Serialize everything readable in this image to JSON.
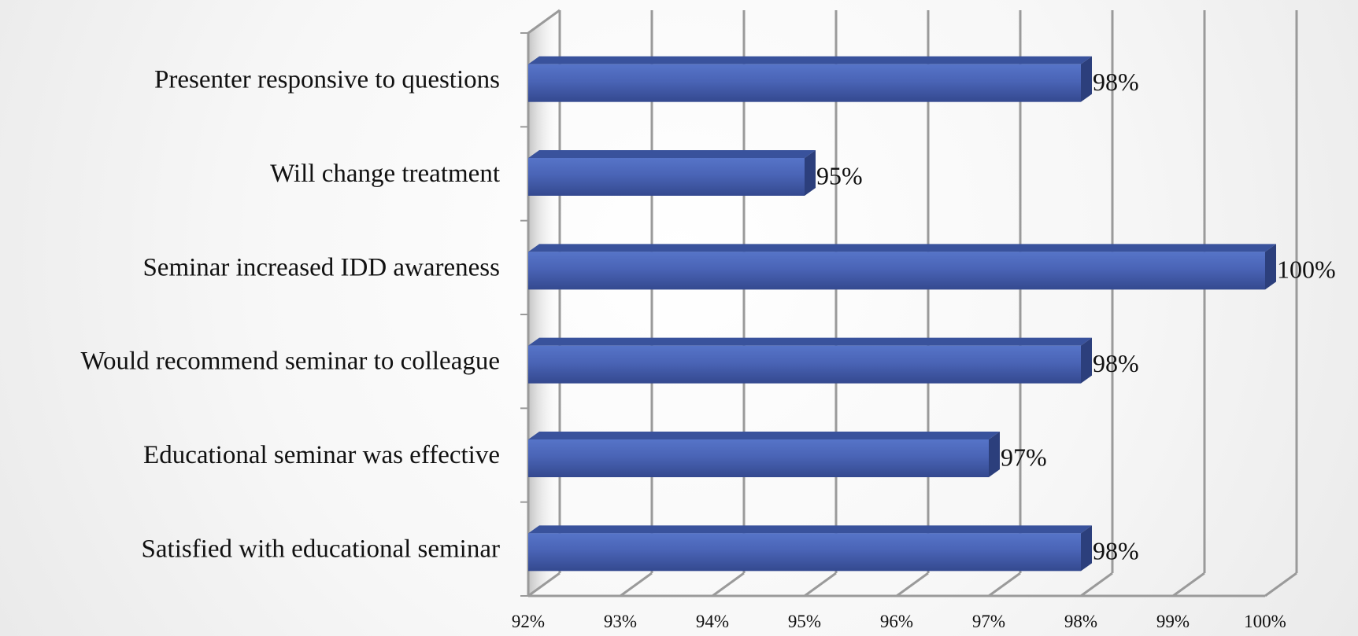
{
  "chart_data": {
    "type": "bar",
    "orientation": "horizontal",
    "style": "3d",
    "title": "",
    "xlabel": "",
    "ylabel": "",
    "categories": [
      "Satisfied with educational seminar",
      "Educational seminar was effective",
      "Would recommend seminar to colleague",
      "Seminar increased IDD awareness",
      "Will change treatment",
      "Presenter responsive to questions"
    ],
    "values": [
      98,
      97,
      98,
      100,
      95,
      98
    ],
    "value_labels": [
      "98%",
      "97%",
      "98%",
      "100%",
      "95%",
      "98%"
    ],
    "xlim": [
      92,
      100
    ],
    "ticks": [
      92,
      93,
      94,
      95,
      96,
      97,
      98,
      99,
      100
    ],
    "tick_labels": [
      "92%",
      "93%",
      "94%",
      "95%",
      "96%",
      "97%",
      "98%",
      "99%",
      "100%"
    ],
    "grid": true,
    "bar_color": "#4a64b6",
    "bar_top_color": "#39529c",
    "bar_side_color": "#2c3f7c",
    "grid_color": "#9a9a9a"
  }
}
